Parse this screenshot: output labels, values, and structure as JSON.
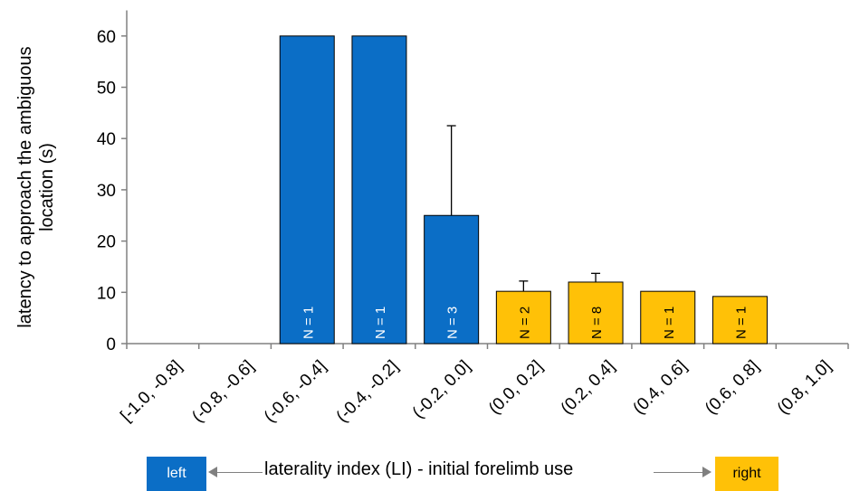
{
  "chart_data": {
    "type": "bar",
    "ylabel": "latency to approach the ambiguous location (s)",
    "ylabel_lines": [
      "latency to approach the ambiguous",
      "location (s)"
    ],
    "ylim": [
      0,
      65
    ],
    "yticks": [
      0,
      10,
      20,
      30,
      40,
      50,
      60
    ],
    "grid": false,
    "categories": [
      "[-1.0, -0.8]",
      "(-0.8, -0.6]",
      "(-0.6, -0.4]",
      "(-0.4, -0.2]",
      "(-0.2, 0.0]",
      "(0.0, 0.2]",
      "(0.2, 0.4]",
      "(0.4, 0.6]",
      "(0.6, 0.8]",
      "(0.8, 1.0]"
    ],
    "values": [
      null,
      null,
      60,
      60,
      25,
      10.2,
      12,
      10.2,
      9.2,
      null
    ],
    "error_upper": [
      null,
      null,
      null,
      null,
      42.5,
      12.2,
      13.7,
      null,
      null,
      null
    ],
    "n_labels": [
      "",
      "",
      "N = 1",
      "N = 1",
      "N = 3",
      "N = 2",
      "N = 8",
      "N = 1",
      "N = 1",
      ""
    ],
    "bar_colors": [
      "#0b6ec6",
      "#0b6ec6",
      "#0b6ec6",
      "#0b6ec6",
      "#0b6ec6",
      "#ffc107",
      "#ffc107",
      "#ffc107",
      "#ffc107",
      "#ffc107"
    ],
    "n_label_colors": [
      "#ffffff",
      "#ffffff",
      "#ffffff",
      "#ffffff",
      "#ffffff",
      "#000000",
      "#000000",
      "#000000",
      "#000000",
      "#000000"
    ]
  },
  "legend": {
    "left_label": "left",
    "right_label": "right",
    "left_color": "#0b6ec6",
    "right_color": "#ffc107",
    "axis_title": "laterality index (LI) - initial  forelimb use"
  }
}
